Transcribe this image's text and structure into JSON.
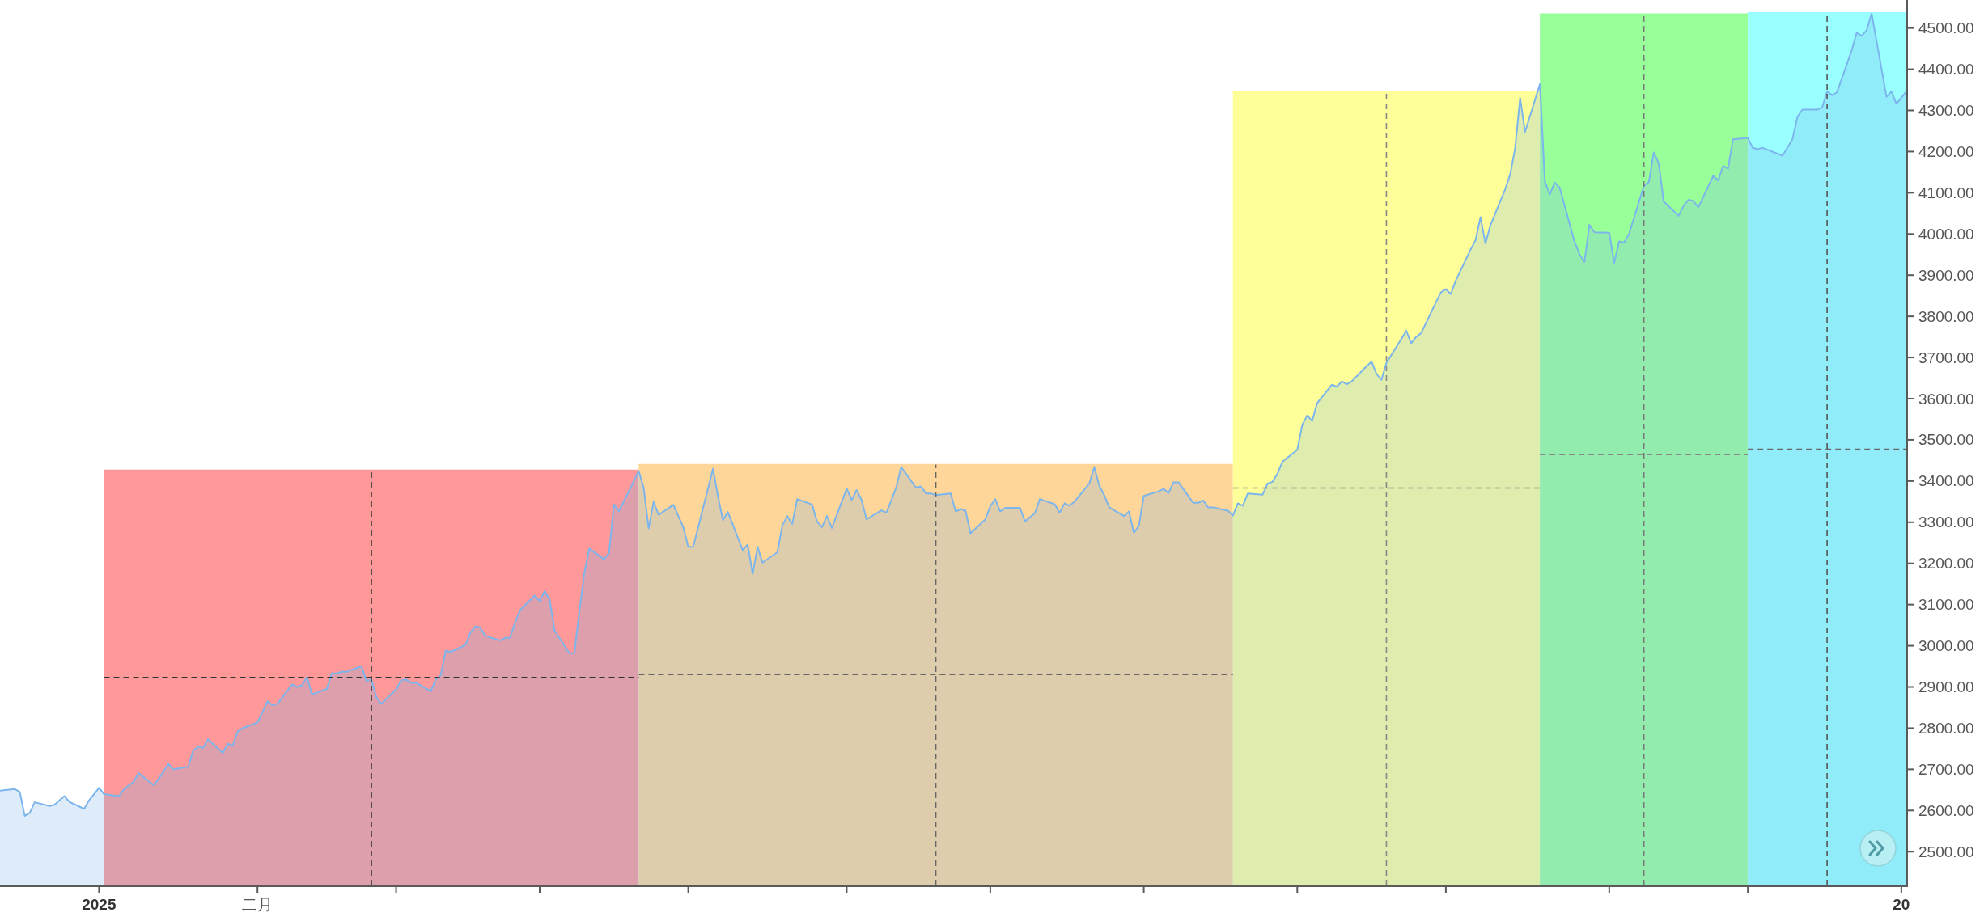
{
  "chart_data": {
    "type": "area",
    "xlim": [
      "2024-12-13",
      "2026-01-02"
    ],
    "ylim": [
      2418,
      4568
    ],
    "xticks": [
      {
        "value": "2025-01-02",
        "label": "2025"
      },
      {
        "value": "2025-02-03",
        "label": "二月"
      },
      {
        "value": "2025-03-03",
        "label": null
      },
      {
        "value": "2025-04-01",
        "label": null
      },
      {
        "value": "2025-05-01",
        "label": null
      },
      {
        "value": "2025-06-02",
        "label": null
      },
      {
        "value": "2025-07-01",
        "label": null
      },
      {
        "value": "2025-08-01",
        "label": null
      },
      {
        "value": "2025-09-01",
        "label": null
      },
      {
        "value": "2025-10-01",
        "label": null
      },
      {
        "value": "2025-11-03",
        "label": null
      },
      {
        "value": "2025-12-01",
        "label": null
      },
      {
        "value": "2026-01-01",
        "label": "20"
      }
    ],
    "yticks": [
      {
        "value": 2500,
        "label": "2500.00"
      },
      {
        "value": 2600,
        "label": "2600.00"
      },
      {
        "value": 2700,
        "label": "2700.00"
      },
      {
        "value": 2800,
        "label": "2800.00"
      },
      {
        "value": 2900,
        "label": "2900.00"
      },
      {
        "value": 3000,
        "label": "3000.00"
      },
      {
        "value": 3100,
        "label": "3100.00"
      },
      {
        "value": 3200,
        "label": "3200.00"
      },
      {
        "value": 3300,
        "label": "3300.00"
      },
      {
        "value": 3400,
        "label": "3400.00"
      },
      {
        "value": 3500,
        "label": "3500.00"
      },
      {
        "value": 3600,
        "label": "3600.00"
      },
      {
        "value": 3700,
        "label": "3700.00"
      },
      {
        "value": 3800,
        "label": "3800.00"
      },
      {
        "value": 3900,
        "label": "3900.00"
      },
      {
        "value": 4000,
        "label": "4000.00"
      },
      {
        "value": 4100,
        "label": "4100.00"
      },
      {
        "value": 4200,
        "label": "4200.00"
      },
      {
        "value": 4300,
        "label": "4300.00"
      },
      {
        "value": 4400,
        "label": "4400.00"
      },
      {
        "value": 4500,
        "label": "4500.00"
      }
    ],
    "series": [
      {
        "x": [
          "2025-01-03",
          "2025-04-21"
        ],
        "values": [
          3426,
          3426
        ],
        "color": "#ff9999"
      },
      {
        "x": [
          "2025-04-21",
          "2025-08-19"
        ],
        "values": [
          3440,
          3440
        ],
        "color": "#ffd699"
      },
      {
        "x": [
          "2025-08-19",
          "2025-10-20"
        ],
        "values": [
          4345,
          4345
        ],
        "color": "#ffff99"
      },
      {
        "x": [
          "2025-10-20",
          "2025-12-01"
        ],
        "values": [
          4534,
          4534
        ],
        "color": "#99ff99"
      },
      {
        "x": [
          "2025-12-01",
          "2026-01-02"
        ],
        "values": [
          4537,
          4537
        ],
        "color": "#99ffff"
      },
      {
        "color": "#7cb5ec",
        "x": [
          "2024-12-13",
          "2024-12-16",
          "2024-12-17",
          "2024-12-18",
          "2024-12-19",
          "2024-12-20",
          "2024-12-23",
          "2024-12-24",
          "2024-12-26",
          "2024-12-27",
          "2024-12-30",
          "2024-12-31",
          "2025-01-02",
          "2025-01-03",
          "2025-01-06",
          "2025-01-07",
          "2025-01-09",
          "2025-01-10",
          "2025-01-13",
          "2025-01-14",
          "2025-01-16",
          "2025-01-17",
          "2025-01-20",
          "2025-01-21",
          "2025-01-22",
          "2025-01-23",
          "2025-01-24",
          "2025-01-27",
          "2025-01-28",
          "2025-01-29",
          "2025-01-30",
          "2025-01-31",
          "2025-02-03",
          "2025-02-04",
          "2025-02-05",
          "2025-02-06",
          "2025-02-07",
          "2025-02-10",
          "2025-02-11",
          "2025-02-12",
          "2025-02-13",
          "2025-02-14",
          "2025-02-17",
          "2025-02-18",
          "2025-02-19",
          "2025-02-20",
          "2025-02-21",
          "2025-02-24",
          "2025-02-25",
          "2025-02-26",
          "2025-02-27",
          "2025-02-28",
          "2025-03-03",
          "2025-03-04",
          "2025-03-05",
          "2025-03-06",
          "2025-03-07",
          "2025-03-10",
          "2025-03-11",
          "2025-03-12",
          "2025-03-13",
          "2025-03-14",
          "2025-03-17",
          "2025-03-18",
          "2025-03-19",
          "2025-03-20",
          "2025-03-21",
          "2025-03-24",
          "2025-03-25",
          "2025-03-26",
          "2025-03-27",
          "2025-03-28",
          "2025-03-31",
          "2025-04-01",
          "2025-04-02",
          "2025-04-03",
          "2025-04-04",
          "2025-04-07",
          "2025-04-08",
          "2025-04-09",
          "2025-04-10",
          "2025-04-11",
          "2025-04-14",
          "2025-04-15",
          "2025-04-16",
          "2025-04-17",
          "2025-04-21",
          "2025-04-22",
          "2025-04-23",
          "2025-04-24",
          "2025-04-25",
          "2025-04-28",
          "2025-04-29",
          "2025-04-30",
          "2025-05-01",
          "2025-05-02",
          "2025-05-06",
          "2025-05-07",
          "2025-05-08",
          "2025-05-09",
          "2025-05-12",
          "2025-05-13",
          "2025-05-14",
          "2025-05-15",
          "2025-05-16",
          "2025-05-19",
          "2025-05-20",
          "2025-05-21",
          "2025-05-22",
          "2025-05-23",
          "2025-05-26",
          "2025-05-27",
          "2025-05-28",
          "2025-05-29",
          "2025-05-30",
          "2025-06-02",
          "2025-06-03",
          "2025-06-04",
          "2025-06-05",
          "2025-06-06",
          "2025-06-09",
          "2025-06-10",
          "2025-06-11",
          "2025-06-12",
          "2025-06-13",
          "2025-06-16",
          "2025-06-17",
          "2025-06-18",
          "2025-06-19",
          "2025-06-20",
          "2025-06-23",
          "2025-06-24",
          "2025-06-25",
          "2025-06-26",
          "2025-06-27",
          "2025-06-30",
          "2025-07-01",
          "2025-07-02",
          "2025-07-03",
          "2025-07-04",
          "2025-07-07",
          "2025-07-08",
          "2025-07-09",
          "2025-07-10",
          "2025-07-11",
          "2025-07-14",
          "2025-07-15",
          "2025-07-16",
          "2025-07-17",
          "2025-07-18",
          "2025-07-21",
          "2025-07-22",
          "2025-07-23",
          "2025-07-24",
          "2025-07-25",
          "2025-07-28",
          "2025-07-29",
          "2025-07-30",
          "2025-07-31",
          "2025-08-01",
          "2025-08-04",
          "2025-08-05",
          "2025-08-06",
          "2025-08-07",
          "2025-08-08",
          "2025-08-11",
          "2025-08-12",
          "2025-08-13",
          "2025-08-14",
          "2025-08-15",
          "2025-08-18",
          "2025-08-19",
          "2025-08-20",
          "2025-08-21",
          "2025-08-22",
          "2025-08-25",
          "2025-08-26",
          "2025-08-27",
          "2025-08-28",
          "2025-08-29",
          "2025-09-01",
          "2025-09-02",
          "2025-09-03",
          "2025-09-04",
          "2025-09-05",
          "2025-09-08",
          "2025-09-09",
          "2025-09-10",
          "2025-09-11",
          "2025-09-12",
          "2025-09-15",
          "2025-09-16",
          "2025-09-17",
          "2025-09-18",
          "2025-09-19",
          "2025-09-22",
          "2025-09-23",
          "2025-09-24",
          "2025-09-25",
          "2025-09-26",
          "2025-09-29",
          "2025-09-30",
          "2025-10-01",
          "2025-10-02",
          "2025-10-03",
          "2025-10-06",
          "2025-10-07",
          "2025-10-08",
          "2025-10-09",
          "2025-10-10",
          "2025-10-13",
          "2025-10-14",
          "2025-10-15",
          "2025-10-16",
          "2025-10-17",
          "2025-10-20",
          "2025-10-21",
          "2025-10-22",
          "2025-10-23",
          "2025-10-24",
          "2025-10-27",
          "2025-10-28",
          "2025-10-29",
          "2025-10-30",
          "2025-10-31",
          "2025-11-03",
          "2025-11-04",
          "2025-11-05",
          "2025-11-06",
          "2025-11-07",
          "2025-11-10",
          "2025-11-11",
          "2025-11-12",
          "2025-11-13",
          "2025-11-14",
          "2025-11-17",
          "2025-11-18",
          "2025-11-19",
          "2025-11-20",
          "2025-11-21",
          "2025-11-24",
          "2025-11-25",
          "2025-11-26",
          "2025-11-27",
          "2025-11-28",
          "2025-12-01",
          "2025-12-02",
          "2025-12-03",
          "2025-12-04",
          "2025-12-08",
          "2025-12-10",
          "2025-12-11",
          "2025-12-12",
          "2025-12-15",
          "2025-12-16",
          "2025-12-17",
          "2025-12-18",
          "2025-12-19",
          "2025-12-22",
          "2025-12-23",
          "2025-12-24",
          "2025-12-25",
          "2025-12-26",
          "2025-12-29",
          "2025-12-30",
          "2025-12-31",
          "2026-01-02"
        ],
        "values": [
          2648,
          2652,
          2645,
          2587,
          2594,
          2620,
          2611,
          2614,
          2635,
          2621,
          2604,
          2625,
          2655,
          2640,
          2635,
          2651,
          2670,
          2691,
          2662,
          2676,
          2713,
          2700,
          2706,
          2745,
          2755,
          2752,
          2773,
          2740,
          2762,
          2758,
          2792,
          2800,
          2814,
          2838,
          2865,
          2856,
          2859,
          2906,
          2900,
          2904,
          2924,
          2882,
          2895,
          2933,
          2933,
          2937,
          2937,
          2950,
          2915,
          2918,
          2876,
          2859,
          2894,
          2916,
          2918,
          2910,
          2910,
          2890,
          2918,
          2928,
          2988,
          2985,
          3002,
          3032,
          3047,
          3044,
          3024,
          3013,
          3019,
          3020,
          3055,
          3086,
          3122,
          3109,
          3133,
          3112,
          3037,
          2982,
          2982,
          3083,
          3176,
          3236,
          3210,
          3226,
          3343,
          3327,
          3424,
          3384,
          3285,
          3350,
          3318,
          3342,
          3315,
          3288,
          3240,
          3240,
          3430,
          3363,
          3305,
          3325,
          3232,
          3246,
          3175,
          3240,
          3202,
          3227,
          3292,
          3315,
          3296,
          3356,
          3343,
          3302,
          3288,
          3315,
          3286,
          3382,
          3354,
          3378,
          3354,
          3307,
          3329,
          3323,
          3353,
          3385,
          3434,
          3384,
          3387,
          3370,
          3370,
          3366,
          3370,
          3326,
          3332,
          3328,
          3273,
          3307,
          3339,
          3356,
          3326,
          3335,
          3335,
          3302,
          3312,
          3322,
          3356,
          3344,
          3323,
          3346,
          3340,
          3350,
          3394,
          3434,
          3389,
          3366,
          3336,
          3315,
          3326,
          3274,
          3291,
          3364,
          3375,
          3381,
          3371,
          3397,
          3397,
          3347,
          3347,
          3353,
          3336,
          3336,
          3328,
          3316,
          3346,
          3340,
          3370,
          3367,
          3394,
          3398,
          3418,
          3447,
          3476,
          3536,
          3559,
          3546,
          3589,
          3634,
          3629,
          3642,
          3635,
          3642,
          3679,
          3690,
          3660,
          3646,
          3687,
          3745,
          3765,
          3735,
          3750,
          3759,
          3834,
          3858,
          3866,
          3854,
          3887,
          3962,
          3985,
          4041,
          3977,
          4021,
          4109,
          4145,
          4209,
          4330,
          4248,
          4364,
          4127,
          4096,
          4125,
          4112,
          3981,
          3951,
          3932,
          4022,
          4004,
          4003,
          3930,
          3982,
          3979,
          4000,
          4117,
          4126,
          4198,
          4171,
          4079,
          4044,
          4068,
          4083,
          4080,
          4065,
          4141,
          4130,
          4165,
          4159,
          4230,
          4233,
          4209,
          4206,
          4209,
          4190,
          4230,
          4284,
          4302,
          4302,
          4307,
          4346,
          4337,
          4344,
          4447,
          4489,
          4481,
          4495,
          4535,
          4333,
          4346,
          4316,
          4346
        ]
      },
      {
        "type": "line",
        "line_style": "dashed",
        "color": "#333333",
        "x": [
          "2025-01-03",
          "2025-04-21"
        ],
        "values": [
          2923,
          2923
        ]
      },
      {
        "type": "line",
        "line_style": "dashed",
        "color": "#333333",
        "x": [
          "2025-02-26",
          "2025-02-26"
        ],
        "values": [
          2418,
          3426
        ]
      },
      {
        "type": "line",
        "line_style": "dashed",
        "color": "#666666",
        "x": [
          "2025-04-21",
          "2025-08-19"
        ],
        "values": [
          2930,
          2930
        ]
      },
      {
        "type": "line",
        "line_style": "dashed",
        "color": "#666666",
        "x": [
          "2025-06-20",
          "2025-06-20"
        ],
        "values": [
          2418,
          3440
        ]
      },
      {
        "type": "line",
        "line_style": "dashed",
        "color": "#888888",
        "x": [
          "2025-08-19",
          "2025-10-20"
        ],
        "values": [
          3383,
          3383
        ]
      },
      {
        "type": "line",
        "line_style": "dashed",
        "color": "#888888",
        "x": [
          "2025-09-19",
          "2025-09-19"
        ],
        "values": [
          2418,
          4345
        ]
      },
      {
        "type": "line",
        "line_style": "dashed",
        "color": "#888888",
        "x": [
          "2025-10-20",
          "2025-12-01"
        ],
        "values": [
          3464,
          3464
        ]
      },
      {
        "type": "line",
        "line_style": "dashed",
        "color": "#777777",
        "x": [
          "2025-11-10",
          "2025-11-10"
        ],
        "values": [
          2418,
          4534
        ]
      },
      {
        "type": "line",
        "line_style": "dashed",
        "color": "#666666",
        "x": [
          "2025-12-01",
          "2026-01-02"
        ],
        "values": [
          3477,
          3477
        ]
      },
      {
        "type": "line",
        "line_style": "dashed",
        "color": "#555555",
        "x": [
          "2025-12-17",
          "2025-12-17"
        ],
        "values": [
          2418,
          4537
        ]
      }
    ]
  }
}
